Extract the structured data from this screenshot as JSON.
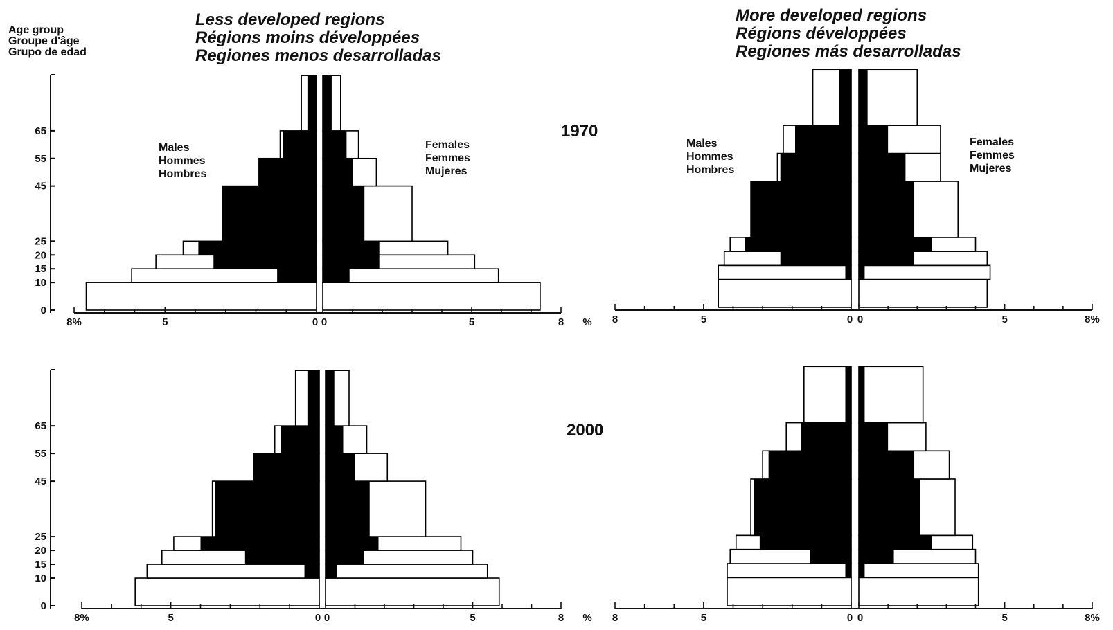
{
  "age_axis_title": [
    "Age group",
    "Groupe d'âge",
    "Grupo de edad"
  ],
  "regions": {
    "less": [
      "Less developed regions",
      "Régions moins développées",
      "Regiones menos desarrolladas"
    ],
    "more": [
      "More developed regions",
      "Régions développées",
      "Regiones más desarrolladas"
    ]
  },
  "years": [
    "1970",
    "2000"
  ],
  "males_label": [
    "Males",
    "Hommes",
    "Hombres"
  ],
  "females_label": [
    "Females",
    "Femmes",
    "Mujeres"
  ],
  "colors": {
    "total": "#ffffff",
    "working_share": "#000000",
    "outline": "#000000"
  },
  "chart_data": [
    {
      "type": "bar",
      "title": "Less developed regions 1970",
      "age_groups": [
        "0-10",
        "10-15",
        "15-20",
        "20-25",
        "25-45",
        "45-55",
        "55-65",
        "65+"
      ],
      "age_tick_labels": [
        "0",
        "10",
        "15",
        "20",
        "25",
        "45",
        "55",
        "65"
      ],
      "x_tick_labels_left": [
        "8%",
        "5",
        "0"
      ],
      "x_tick_labels_right": [
        "0",
        "5",
        "8"
      ],
      "unit_label": "%",
      "xlim": [
        -8,
        8
      ],
      "series": [
        {
          "name": "Males",
          "values": [
            7.6,
            6.1,
            5.3,
            4.4,
            3.1,
            1.9,
            1.2,
            0.5
          ]
        },
        {
          "name": "Females",
          "values": [
            7.3,
            5.9,
            5.1,
            4.2,
            3.0,
            1.8,
            1.2,
            0.6
          ]
        }
      ],
      "filled_share": {
        "males": [
          0.0,
          1.3,
          3.4,
          3.9,
          3.1,
          1.9,
          1.1,
          0.3
        ],
        "females": [
          0.0,
          0.9,
          1.9,
          1.9,
          1.4,
          1.0,
          0.8,
          0.3
        ]
      }
    },
    {
      "type": "bar",
      "title": "More developed regions 1970",
      "age_groups": [
        "0-10",
        "10-15",
        "15-20",
        "20-25",
        "25-45",
        "45-55",
        "55-65",
        "65+"
      ],
      "x_tick_labels_left": [
        "8",
        "5",
        "0"
      ],
      "x_tick_labels_right": [
        "0",
        "5",
        "8%"
      ],
      "xlim": [
        -8,
        8
      ],
      "series": [
        {
          "name": "Males",
          "values": [
            4.5,
            4.5,
            4.3,
            4.1,
            3.4,
            2.5,
            2.3,
            1.3
          ]
        },
        {
          "name": "Females",
          "values": [
            4.4,
            4.5,
            4.4,
            4.0,
            3.4,
            2.8,
            2.8,
            2.0
          ]
        }
      ],
      "filled_share": {
        "males": [
          0.0,
          0.2,
          2.4,
          3.6,
          3.4,
          2.4,
          1.9,
          0.4
        ],
        "females": [
          0.0,
          0.2,
          1.9,
          2.5,
          1.9,
          1.6,
          1.0,
          0.3
        ]
      }
    },
    {
      "type": "bar",
      "title": "Less developed regions 2000",
      "age_groups": [
        "0-10",
        "10-15",
        "15-20",
        "20-25",
        "25-45",
        "45-55",
        "55-65",
        "65+"
      ],
      "age_tick_labels": [
        "0",
        "10",
        "15",
        "20",
        "25",
        "45",
        "55",
        "65"
      ],
      "x_tick_labels_left": [
        "8%",
        "5",
        "0"
      ],
      "x_tick_labels_right": [
        "0",
        "5",
        "8"
      ],
      "unit_label": "%",
      "xlim": [
        -8,
        8
      ],
      "series": [
        {
          "name": "Males",
          "values": [
            6.2,
            5.8,
            5.3,
            4.9,
            3.6,
            2.2,
            1.5,
            0.8
          ]
        },
        {
          "name": "Females",
          "values": [
            5.9,
            5.5,
            5.0,
            4.6,
            3.4,
            2.1,
            1.4,
            0.8
          ]
        }
      ],
      "filled_share": {
        "males": [
          0.0,
          0.5,
          2.5,
          4.0,
          3.5,
          2.2,
          1.3,
          0.4
        ],
        "females": [
          0.0,
          0.4,
          1.3,
          1.8,
          1.5,
          1.0,
          0.6,
          0.3
        ]
      }
    },
    {
      "type": "bar",
      "title": "More developed regions 2000",
      "age_groups": [
        "0-10",
        "10-15",
        "15-20",
        "20-25",
        "25-45",
        "45-55",
        "55-65",
        "65+"
      ],
      "x_tick_labels_left": [
        "8",
        "5",
        "0"
      ],
      "x_tick_labels_right": [
        "0",
        "5",
        "8%"
      ],
      "xlim": [
        -8,
        8
      ],
      "series": [
        {
          "name": "Males",
          "values": [
            4.2,
            4.2,
            4.1,
            3.9,
            3.4,
            3.0,
            2.2,
            1.6
          ]
        },
        {
          "name": "Females",
          "values": [
            4.1,
            4.1,
            4.0,
            3.9,
            3.3,
            3.1,
            2.3,
            2.2
          ]
        }
      ],
      "filled_share": {
        "males": [
          0.0,
          0.2,
          1.4,
          3.1,
          3.3,
          2.8,
          1.7,
          0.2
        ],
        "females": [
          0.0,
          0.2,
          1.2,
          2.5,
          2.1,
          1.9,
          1.0,
          0.2
        ]
      }
    }
  ]
}
